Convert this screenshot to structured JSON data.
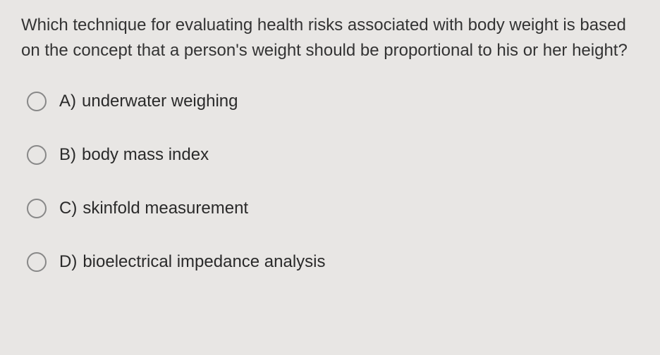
{
  "question": {
    "text": "Which technique for evaluating health risks associated with body weight is based on the concept that a person's weight should be proportional to his or her height?"
  },
  "options": [
    {
      "letter": "A)",
      "text": "underwater weighing"
    },
    {
      "letter": "B)",
      "text": "body mass index"
    },
    {
      "letter": "C)",
      "text": "skinfold measurement"
    },
    {
      "letter": "D)",
      "text": "bioelectrical impedance analysis"
    }
  ],
  "styling": {
    "background_color": "#e8e6e4",
    "text_color": "#2a2a2a",
    "question_fontsize": 24,
    "option_fontsize": 24,
    "radio_border_color": "#888888",
    "radio_size": 28,
    "line_height": 1.5,
    "option_spacing": 48
  }
}
